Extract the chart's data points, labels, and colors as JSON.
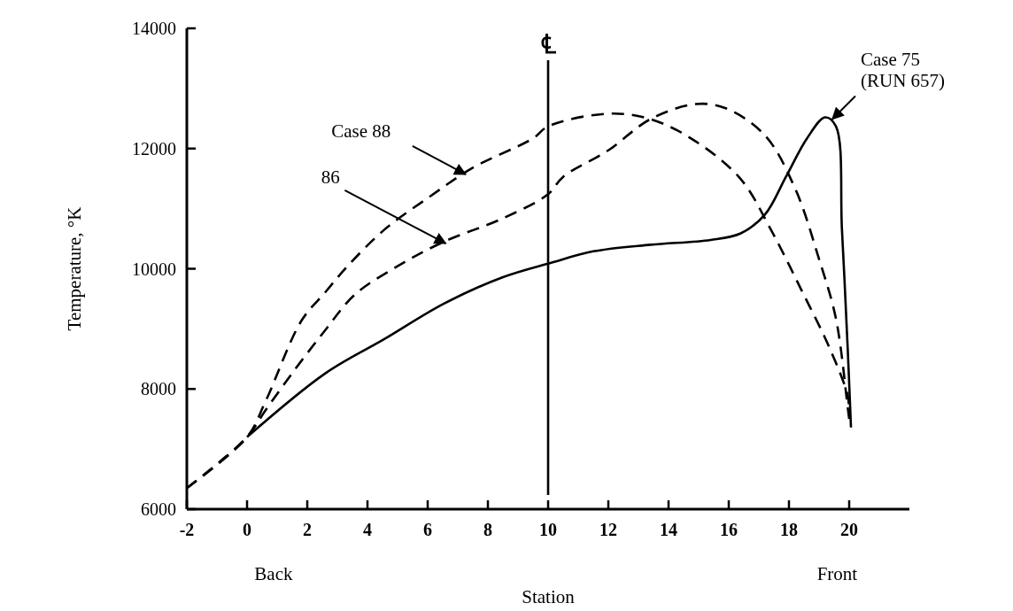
{
  "chart_data": {
    "type": "line",
    "xlabel": "Station",
    "ylabel": "Temperature, °K",
    "xlim": [
      -2,
      22
    ],
    "xticks": [
      -2,
      0,
      2,
      4,
      6,
      8,
      10,
      12,
      14,
      16,
      18,
      20
    ],
    "ylim": [
      6000,
      14000
    ],
    "yticks": [
      6000,
      8000,
      10000,
      12000,
      14000
    ],
    "grid": false,
    "series": [
      {
        "color": "#000000",
        "line_style": "dashed",
        "x": [
          -2,
          0,
          0.62,
          1.8,
          2.6,
          3.37,
          4.56,
          6.04,
          7.5,
          9.5,
          10,
          12,
          13.4,
          14.9,
          16.4,
          17.4,
          18.4,
          19.35,
          19.95,
          20
        ],
        "values": [
          6350,
          7200,
          7800,
          9130,
          9610,
          10060,
          10650,
          11190,
          11680,
          12170,
          12370,
          12580,
          12490,
          12120,
          11490,
          10650,
          9660,
          8680,
          7890,
          7600
        ]
      },
      {
        "color": "#000000",
        "line_style": "dashed",
        "x": [
          -2,
          0,
          0.62,
          1.6,
          2.6,
          3.58,
          5.06,
          6.54,
          8.5,
          10,
          10.5,
          12,
          13.4,
          14.9,
          15.9,
          17.2,
          18.2,
          19,
          19.56,
          19.95,
          20
        ],
        "values": [
          6350,
          7200,
          7650,
          8330,
          8980,
          9570,
          10060,
          10450,
          10840,
          11240,
          11530,
          11970,
          12490,
          12740,
          12670,
          12220,
          11340,
          10160,
          9170,
          7700,
          7500
        ]
      },
      {
        "color": "#000000",
        "line_style": "solid",
        "x": [
          0,
          2.6,
          4.56,
          6.54,
          8.5,
          10.1,
          11.5,
          13.4,
          15.4,
          16.4,
          17.2,
          17.9,
          18.6,
          19.2,
          19.56,
          19.76,
          19.95,
          20.06
        ],
        "values": [
          7200,
          8260,
          8830,
          9420,
          9860,
          10100,
          10290,
          10400,
          10480,
          10590,
          10900,
          11530,
          12170,
          12520,
          12370,
          10650,
          8680,
          7360
        ]
      }
    ],
    "ref_lines": [
      {
        "axis": "x",
        "value": 10,
        "label": "℄"
      }
    ],
    "annotations": [
      {
        "text": "Case 88",
        "x": 7.2,
        "y": 11600
      },
      {
        "text": "86",
        "x": 6.54,
        "y": 10450
      },
      {
        "text": "Case 75\n(RUN 657)",
        "x": 19.5,
        "y": 12520
      },
      "Back",
      "Front"
    ]
  }
}
